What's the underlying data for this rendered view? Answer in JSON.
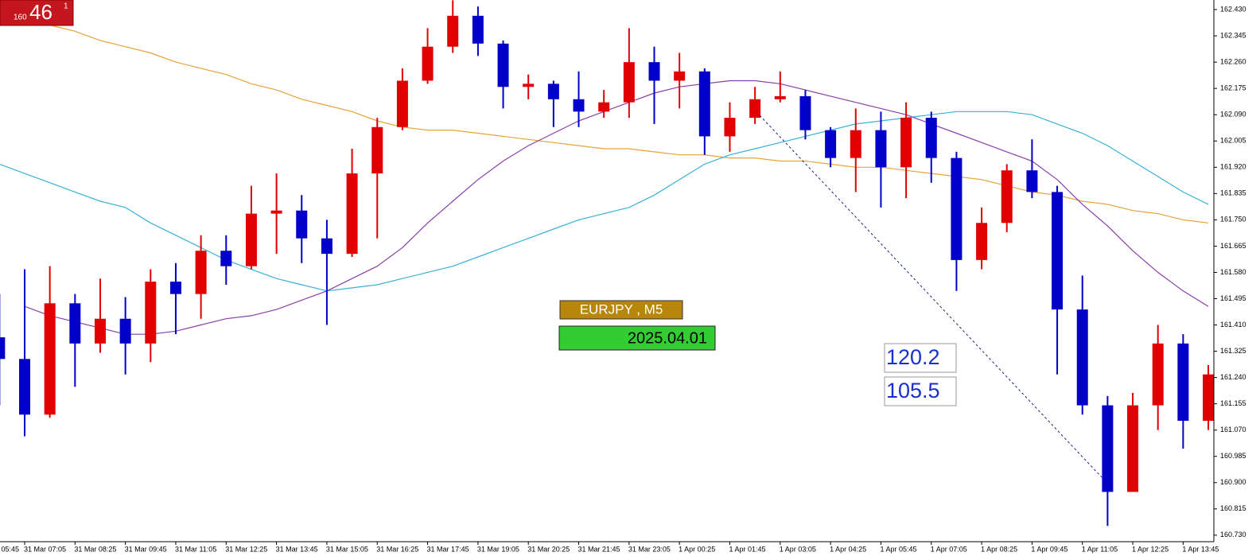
{
  "chart_data": {
    "type": "candlestick",
    "categories": [
      "05:45",
      null,
      "31 Mar 07:05",
      null,
      "31 Mar 08:25",
      null,
      "31 Mar 09:45",
      null,
      "31 Mar 11:05",
      null,
      "31 Mar 12:25",
      null,
      "31 Mar 13:45",
      null,
      "31 Mar 15:05",
      null,
      "31 Mar 16:25",
      null,
      "31 Mar 17:45",
      null,
      "31 Mar 19:05",
      null,
      "31 Mar 20:25",
      null,
      "31 Mar 21:45",
      null,
      "31 Mar 23:05",
      null,
      "1 Apr 00:25",
      null,
      "1 Apr 01:45",
      null,
      "1 Apr 03:05",
      null,
      "1 Apr 04:25",
      null,
      "1 Apr 05:45",
      null,
      "1 Apr 07:05",
      null,
      "1 Apr 08:25",
      null,
      "1 Apr 09:45",
      null,
      "1 Apr 11:05",
      null,
      "1 Apr 12:25",
      null,
      "1 Apr 13:45",
      null
    ],
    "open": [
      null,
      161.37,
      161.3,
      161.12,
      161.48,
      161.35,
      161.43,
      161.35,
      161.55,
      161.51,
      161.65,
      161.6,
      161.77,
      161.78,
      161.69,
      161.64,
      161.9,
      162.05,
      162.2,
      162.31,
      162.41,
      162.32,
      162.18,
      162.19,
      162.14,
      162.1,
      162.13,
      162.26,
      162.2,
      162.23,
      162.02,
      162.08,
      162.14,
      162.15,
      162.04,
      161.95,
      162.04,
      161.92,
      162.08,
      161.95,
      161.62,
      161.74,
      161.91,
      161.84,
      161.46,
      161.15,
      160.87,
      161.15,
      161.35,
      161.1
    ],
    "high": [
      null,
      161.51,
      161.59,
      161.6,
      161.51,
      161.56,
      161.5,
      161.59,
      161.61,
      161.7,
      161.7,
      161.86,
      161.9,
      161.83,
      161.75,
      161.98,
      162.08,
      162.24,
      162.37,
      162.46,
      162.44,
      162.33,
      162.22,
      162.2,
      162.23,
      162.17,
      162.37,
      162.31,
      162.29,
      162.24,
      162.13,
      162.18,
      162.23,
      162.17,
      162.05,
      162.11,
      162.1,
      162.13,
      162.1,
      161.97,
      161.79,
      161.93,
      162.01,
      161.86,
      161.57,
      161.18,
      161.19,
      161.41,
      161.38,
      161.28
    ],
    "low": [
      null,
      161.15,
      161.05,
      161.11,
      161.21,
      161.32,
      161.25,
      161.29,
      161.38,
      161.43,
      161.54,
      161.59,
      161.64,
      161.61,
      161.41,
      161.63,
      161.69,
      162.04,
      162.19,
      162.29,
      162.28,
      162.11,
      162.14,
      162.05,
      162.05,
      162.08,
      162.08,
      162.06,
      162.11,
      161.96,
      161.97,
      162.06,
      162.13,
      162.01,
      161.92,
      161.84,
      161.79,
      161.82,
      161.87,
      161.52,
      161.59,
      161.71,
      161.82,
      161.25,
      161.12,
      160.76,
      160.88,
      161.07,
      161.01,
      161.07
    ],
    "close": [
      null,
      161.3,
      161.12,
      161.48,
      161.35,
      161.43,
      161.35,
      161.55,
      161.51,
      161.65,
      161.6,
      161.77,
      161.78,
      161.69,
      161.64,
      161.9,
      162.05,
      162.2,
      162.31,
      162.41,
      162.32,
      162.18,
      162.19,
      162.14,
      162.1,
      162.13,
      162.26,
      162.2,
      162.23,
      162.02,
      162.08,
      162.14,
      162.15,
      162.04,
      161.95,
      162.04,
      161.92,
      162.08,
      161.95,
      161.62,
      161.74,
      161.91,
      161.84,
      161.46,
      161.15,
      160.87,
      161.15,
      161.35,
      161.1,
      161.25
    ],
    "up_color": "#e00000",
    "down_color": "#0000c8",
    "lines": [
      {
        "color": "#e8a33a",
        "values": [
          null,
          null,
          null,
          162.38,
          162.36,
          162.33,
          162.31,
          162.29,
          162.26,
          162.24,
          162.22,
          162.19,
          162.17,
          162.14,
          162.12,
          162.1,
          162.07,
          162.05,
          162.04,
          162.04,
          162.03,
          162.02,
          162.01,
          162.0,
          161.99,
          161.98,
          161.98,
          161.97,
          161.96,
          161.96,
          161.95,
          161.95,
          161.94,
          161.94,
          161.93,
          161.92,
          161.92,
          161.91,
          161.9,
          161.89,
          161.88,
          161.86,
          161.84,
          161.83,
          161.81,
          161.8,
          161.78,
          161.77,
          161.75,
          161.74
        ]
      },
      {
        "color": "#3ab0d8",
        "values": [
          null,
          161.93,
          161.9,
          161.87,
          161.84,
          161.81,
          161.79,
          161.74,
          161.7,
          161.66,
          161.62,
          161.59,
          161.56,
          161.54,
          161.52,
          161.53,
          161.54,
          161.56,
          161.58,
          161.6,
          161.63,
          161.66,
          161.69,
          161.72,
          161.75,
          161.77,
          161.79,
          161.83,
          161.88,
          161.93,
          161.96,
          161.98,
          162.0,
          162.02,
          162.04,
          162.06,
          162.07,
          162.08,
          162.09,
          162.1,
          162.1,
          162.1,
          162.09,
          162.06,
          162.03,
          161.99,
          161.94,
          161.89,
          161.84,
          161.8
        ]
      },
      {
        "color": "#8a3fa8",
        "values": [
          null,
          null,
          161.47,
          161.44,
          161.42,
          161.4,
          161.38,
          161.38,
          161.39,
          161.41,
          161.43,
          161.44,
          161.46,
          161.49,
          161.52,
          161.56,
          161.6,
          161.66,
          161.74,
          161.81,
          161.88,
          161.94,
          161.99,
          162.03,
          162.07,
          162.1,
          162.13,
          162.16,
          162.18,
          162.19,
          162.2,
          162.2,
          162.19,
          162.17,
          162.15,
          162.13,
          162.11,
          162.09,
          162.06,
          162.03,
          162.0,
          161.97,
          161.94,
          161.88,
          161.8,
          161.73,
          161.65,
          161.58,
          161.52,
          161.47
        ]
      }
    ],
    "ylim": [
      160.709,
      162.461
    ],
    "yticks": [
      {
        "value": 162.43,
        "label": "162.430"
      },
      162.345,
      {
        "value": 162.26,
        "label": "162.260"
      },
      162.175,
      {
        "value": 162.09,
        "label": "162.090"
      },
      162.005,
      {
        "value": 161.92,
        "label": "161.920"
      },
      161.835,
      {
        "value": 161.75,
        "label": "161.750"
      },
      161.665,
      {
        "value": 161.58,
        "label": "161.580"
      },
      161.495,
      {
        "value": 161.41,
        "label": "161.410"
      },
      161.325,
      {
        "value": 161.24,
        "label": "161.240"
      },
      161.155,
      {
        "value": 161.07,
        "label": "161.070"
      },
      160.985,
      {
        "value": 160.9,
        "label": "160.900"
      },
      160.815,
      {
        "value": 160.73,
        "label": "160.730"
      }
    ],
    "badge": {
      "prefix": "160",
      "main": "46",
      "sup": "1"
    },
    "symbol_label": "EURJPY , M5",
    "date_label": "2025.04.01",
    "boxes": [
      "120.2",
      "105.5"
    ]
  }
}
